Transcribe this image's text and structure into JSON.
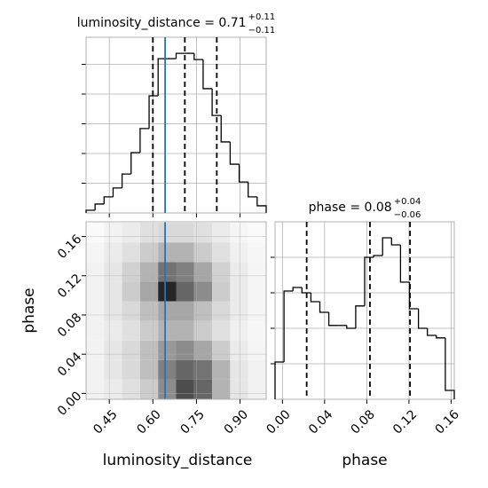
{
  "chart_data": [
    {
      "type": "histogram",
      "title": "luminosity_distance = 0.71",
      "plus": "+0.11",
      "minus": "−0.11",
      "bins": [
        0.37,
        0.401,
        0.432,
        0.463,
        0.494,
        0.525,
        0.556,
        0.587,
        0.618,
        0.649,
        0.68,
        0.711,
        0.742,
        0.773,
        0.804,
        0.835,
        0.866,
        0.897,
        0.928,
        0.959,
        0.99
      ],
      "values": [
        9,
        30,
        54,
        84,
        131,
        203,
        284,
        394,
        519,
        519,
        537,
        537,
        516,
        418,
        328,
        239,
        164,
        104,
        54,
        24
      ],
      "xlim": [
        0.37,
        0.99
      ],
      "ylim": [
        0,
        591
      ],
      "yticks": [
        100,
        200,
        300,
        400,
        500
      ],
      "quantiles": [
        0.6,
        0.71,
        0.82
      ],
      "truth": 0.642,
      "color": "#000000",
      "truth_color": "#1f77b4",
      "grid": true
    },
    {
      "type": "density",
      "xlabel": "luminosity_distance",
      "ylabel": "phase",
      "xlim": [
        0.37,
        0.99
      ],
      "ylim": [
        -0.006,
        0.175
      ],
      "xticks": [
        {
          "value": 0.45,
          "label": "0.45"
        },
        {
          "value": 0.6,
          "label": "0.60"
        },
        {
          "value": 0.75,
          "label": "0.75"
        },
        {
          "value": 0.9,
          "label": "0.90"
        }
      ],
      "yticks": [
        {
          "value": 0,
          "label": "0.00"
        },
        0.04,
        0.08,
        0.12,
        0.16
      ],
      "x_edges": [
        0.37,
        0.432,
        0.494,
        0.556,
        0.618,
        0.68,
        0.742,
        0.804,
        0.866,
        0.928,
        0.99
      ],
      "y_edges": [
        -0.006,
        0.014,
        0.034,
        0.054,
        0.074,
        0.094,
        0.114,
        0.134,
        0.154,
        0.174
      ],
      "values": [
        [
          0.05,
          0.08,
          0.12,
          0.2,
          0.45,
          0.7,
          0.6,
          0.3,
          0.1,
          0.05
        ],
        [
          0.05,
          0.1,
          0.15,
          0.25,
          0.5,
          0.6,
          0.55,
          0.3,
          0.1,
          0.05
        ],
        [
          0.05,
          0.1,
          0.15,
          0.25,
          0.4,
          0.45,
          0.35,
          0.2,
          0.08,
          0.04
        ],
        [
          0.05,
          0.08,
          0.12,
          0.2,
          0.3,
          0.3,
          0.2,
          0.12,
          0.06,
          0.03
        ],
        [
          0.05,
          0.1,
          0.15,
          0.25,
          0.35,
          0.35,
          0.25,
          0.15,
          0.08,
          0.04
        ],
        [
          0.05,
          0.1,
          0.2,
          0.35,
          0.85,
          0.6,
          0.45,
          0.2,
          0.08,
          0.04
        ],
        [
          0.05,
          0.1,
          0.18,
          0.3,
          0.55,
          0.5,
          0.35,
          0.18,
          0.08,
          0.04
        ],
        [
          0.04,
          0.08,
          0.12,
          0.2,
          0.3,
          0.3,
          0.2,
          0.12,
          0.06,
          0.03
        ],
        [
          0.02,
          0.05,
          0.08,
          0.12,
          0.15,
          0.15,
          0.12,
          0.08,
          0.04,
          0.02
        ]
      ],
      "truth": 0.642,
      "truth_color": "#1f77b4",
      "grid": true
    },
    {
      "type": "histogram",
      "title": "phase = 0.08",
      "plus": "+0.04",
      "minus": "−0.06",
      "xlabel": "phase",
      "bins": [
        -0.007,
        0.0015,
        0.01,
        0.0185,
        0.027,
        0.0355,
        0.044,
        0.0525,
        0.061,
        0.0695,
        0.078,
        0.0865,
        0.095,
        0.1035,
        0.112,
        0.1205,
        0.129,
        0.1375,
        0.146,
        0.1545,
        0.163
      ],
      "values": [
        105,
        305,
        315,
        300,
        275,
        245,
        208,
        208,
        200,
        263,
        400,
        405,
        455,
        435,
        330,
        255,
        200,
        180,
        173,
        25
      ],
      "xlim": [
        -0.007,
        0.163
      ],
      "ylim": [
        0,
        500
      ],
      "yticks": [
        100,
        200,
        300,
        400
      ],
      "xticks": [
        {
          "value": 0,
          "label": "0.00"
        },
        0.04,
        0.08,
        0.12,
        0.16
      ],
      "quantiles": [
        0.023,
        0.083,
        0.121
      ],
      "color": "#000000",
      "grid": true
    }
  ]
}
